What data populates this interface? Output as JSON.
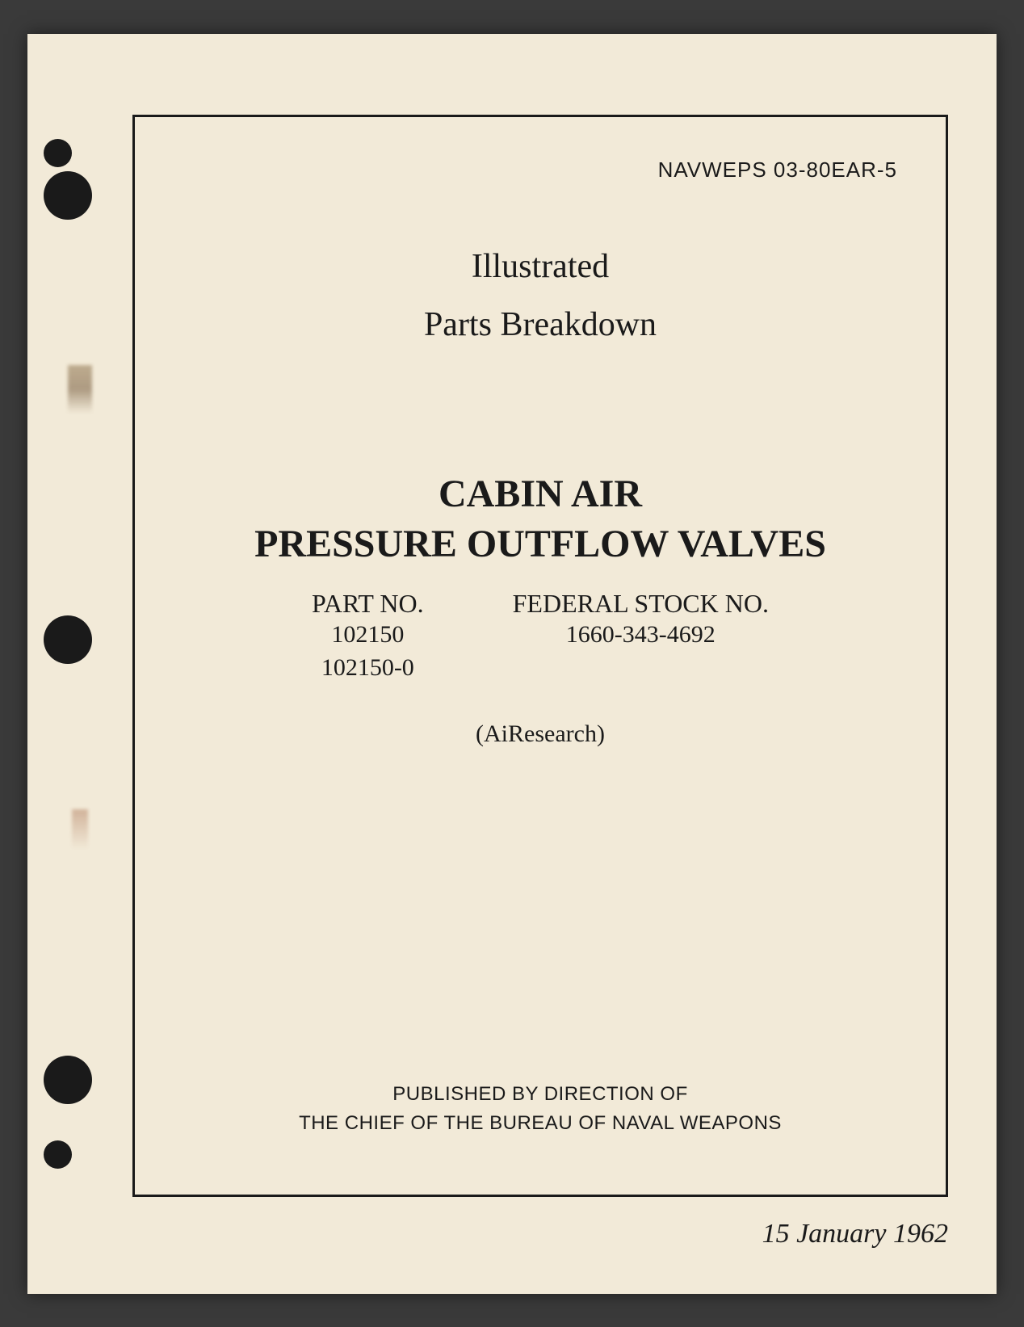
{
  "page": {
    "background_color": "#f2ead8",
    "frame_border_color": "#1a1a1a",
    "text_color": "#1a1a1a"
  },
  "header": {
    "doc_id": "NAVWEPS 03-80EAR-5"
  },
  "title": {
    "line1": "Illustrated",
    "line2": "Parts Breakdown"
  },
  "main_title": {
    "line1": "CABIN AIR",
    "line2": "PRESSURE OUTFLOW VALVES"
  },
  "parts": {
    "part_no_label": "PART NO.",
    "part_numbers": [
      "102150",
      "102150-0"
    ],
    "federal_stock_label": "FEDERAL STOCK NO.",
    "federal_stock_number": "1660-343-4692"
  },
  "manufacturer": "(AiResearch)",
  "publisher": {
    "line1": "PUBLISHED BY DIRECTION OF",
    "line2": "THE CHIEF OF THE BUREAU OF NAVAL WEAPONS"
  },
  "date": "15 January 1962",
  "typography": {
    "doc_id_fontsize": 26,
    "title_fontsize": 42,
    "main_title_fontsize": 48,
    "col_header_fontsize": 32,
    "col_value_fontsize": 30,
    "manufacturer_fontsize": 30,
    "publisher_fontsize": 24,
    "date_fontsize": 34
  }
}
